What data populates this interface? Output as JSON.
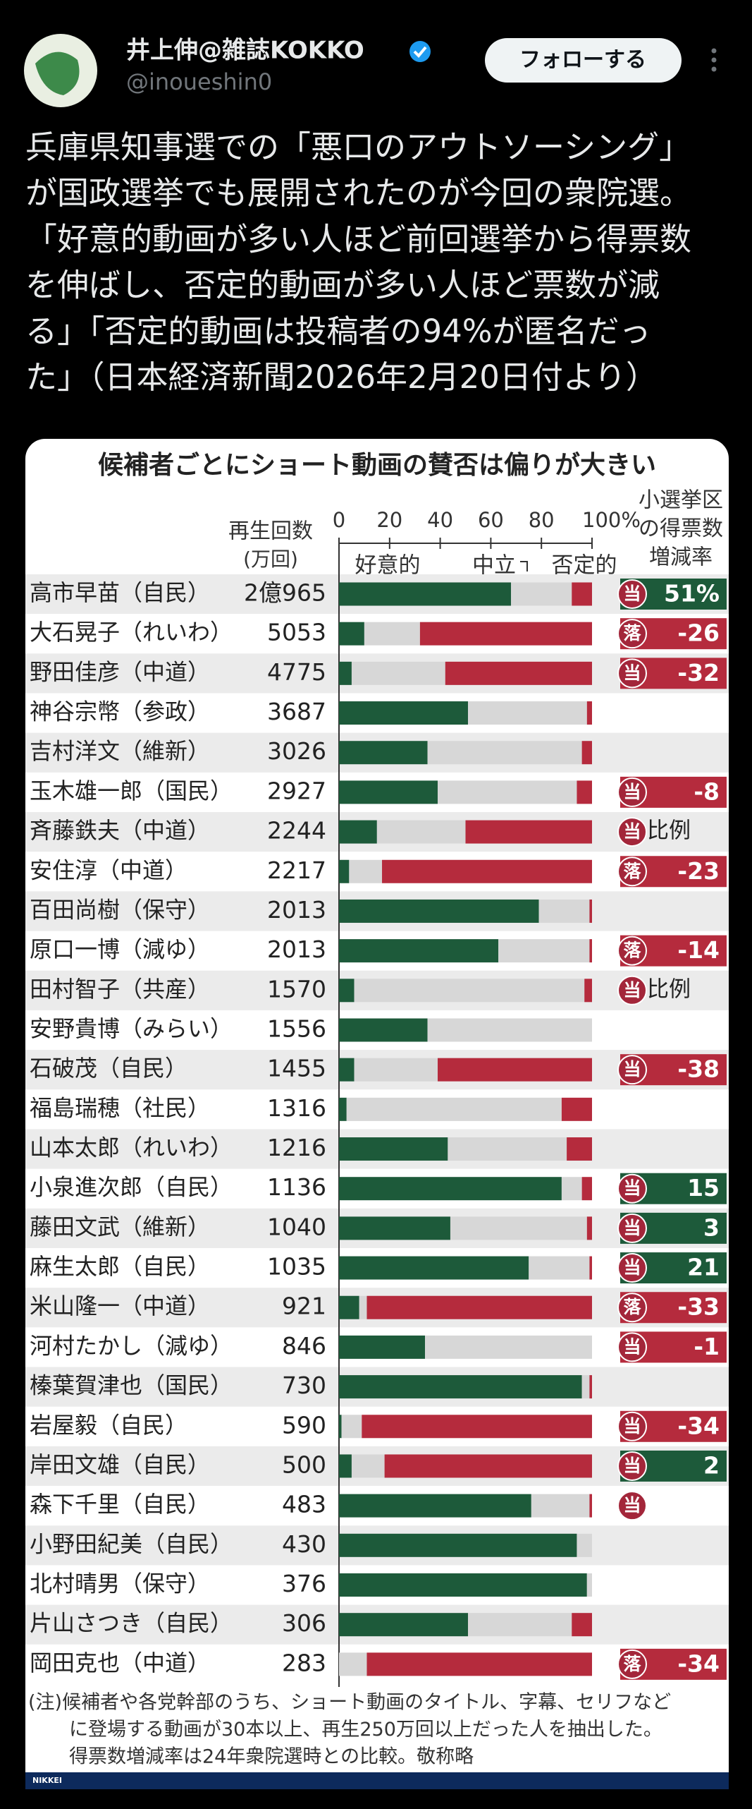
{
  "post": {
    "author": "井上伸@雑誌KOKKO",
    "handle": "@inoueshin0",
    "follow": "フォローする",
    "text": [
      "兵庫県知事選での「悪口のアウトソーシング」",
      "が国政選挙でも展開されたのが今回の衆院選。",
      "「好意的動画が多い人ほど前回選挙から得票数",
      "を伸ばし、否定的動画が多い人ほど票数が減",
      "る」「否定的動画は投稿者の94%が匿名だっ",
      "た」（日本経済新聞2026年2月20日付より）"
    ]
  },
  "chart_data": {
    "type": "stacked-bar-horizontal",
    "title": "候補者ごとにショート動画の賛否は偏りが大きい",
    "plays_header": "再生回数",
    "plays_unit": "(万回)",
    "change_header": [
      "小選挙区",
      "の得票数",
      "増減率"
    ],
    "categories": [
      "高市早苗（自民）",
      "大石晃子（れいわ）",
      "野田佳彦（中道）",
      "神谷宗幣（参政）",
      "吉村洋文（維新）",
      "玉木雄一郎（国民）",
      "斉藤鉄夫（中道）",
      "安住淳（中道）",
      "百田尚樹（保守）",
      "原口一博（減ゆ）",
      "田村智子（共産）",
      "安野貴博（みらい）",
      "石破茂（自民）",
      "福島瑞穂（社民）",
      "山本太郎（れいわ）",
      "小泉進次郎（自民）",
      "藤田文武（維新）",
      "麻生太郎（自民）",
      "米山隆一（中道）",
      "河村たかし（減ゆ）",
      "榛葉賀津也（国民）",
      "岩屋毅（自民）",
      "岸田文雄（自民）",
      "森下千里（自民）",
      "小野田紀美（自民）",
      "北村晴男（保守）",
      "片山さつき（自民）",
      "岡田克也（中道）"
    ],
    "plays": [
      "2億965",
      "5053",
      "4775",
      "3687",
      "3026",
      "2927",
      "2244",
      "2217",
      "2013",
      "2013",
      "1570",
      "1556",
      "1455",
      "1316",
      "1216",
      "1136",
      "1040",
      "1035",
      "921",
      "846",
      "730",
      "590",
      "500",
      "483",
      "430",
      "376",
      "306",
      "283"
    ],
    "series": [
      {
        "name": "好意的",
        "color": "#1d5a3a",
        "values": [
          68,
          10,
          5,
          51,
          35,
          39,
          15,
          4,
          79,
          63,
          6,
          35,
          6,
          3,
          43,
          88,
          44,
          75,
          8,
          34,
          96,
          1,
          5,
          76,
          94,
          98,
          51,
          0
        ]
      },
      {
        "name": "中立",
        "color": "#d7d7d7",
        "values": [
          24,
          22,
          37,
          47,
          61,
          55,
          35,
          13,
          20,
          36,
          91,
          65,
          33,
          85,
          47,
          8,
          54,
          24,
          3,
          66,
          3,
          8,
          13,
          23,
          6,
          2,
          41,
          11
        ]
      },
      {
        "name": "否定的",
        "color": "#b52b3d",
        "values": [
          8,
          68,
          58,
          2,
          4,
          6,
          50,
          83,
          1,
          1,
          3,
          0,
          61,
          12,
          10,
          4,
          2,
          1,
          89,
          0,
          1,
          91,
          82,
          1,
          0,
          0,
          8,
          89
        ]
      }
    ],
    "xlim": [
      0,
      100
    ],
    "xticks": [
      0,
      20,
      40,
      60,
      80,
      {
        "value": 100,
        "label": "100%"
      }
    ],
    "results": [
      "当",
      "落",
      "当",
      null,
      null,
      "当",
      "当",
      "落",
      null,
      "落",
      "当",
      null,
      "当",
      null,
      null,
      "当",
      "当",
      "当",
      "落",
      "当",
      null,
      "当",
      "当",
      "当",
      null,
      null,
      null,
      "落"
    ],
    "change": [
      {
        "value": 51,
        "label": "51%"
      },
      -26,
      -32,
      null,
      null,
      -8,
      "比例",
      -23,
      null,
      -14,
      "比例",
      null,
      -38,
      null,
      null,
      15,
      3,
      21,
      -33,
      -1,
      null,
      -34,
      2,
      null,
      null,
      null,
      null,
      -34
    ],
    "note": [
      "(注)候補者や各党幹部のうち、ショート動画のタイトル、字幕、セリフなど",
      "に登場する動画が30本以上、再生250万回以上だった人を抽出した。",
      "得票数増減率は24年衆院選時との比較。敬称略"
    ],
    "source": "NIKKEI"
  }
}
